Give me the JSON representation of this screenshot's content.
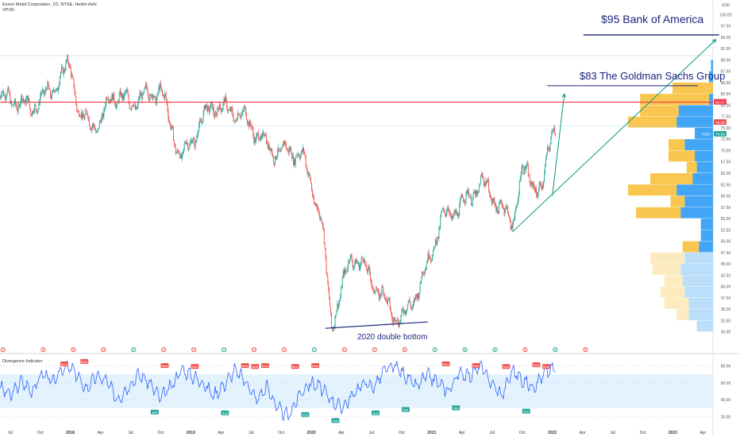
{
  "header": {
    "symbol": "Exxon Mobil Corporation, 1D, NYSE, Heikin Ashi",
    "indicator": "VPVR"
  },
  "colors": {
    "bull": "#26a69a",
    "bear": "#ef5350",
    "red_line": "#f23645",
    "annotation": "#1a237e",
    "trend": "#089981",
    "vp_up": "#42a5f5",
    "vp_down": "#f9c74f",
    "vp_up_light": "#bbdefb",
    "vp_down_light": "#fdebc0",
    "rsi": "#2962ff",
    "band": "#e3f2fd"
  },
  "annotations": {
    "boa": "$95 Bank of America",
    "gs": "$83 The Goldman Sachs Group",
    "double_bottom": "2020 double bottom"
  },
  "price_badges": {
    "red": "80.67",
    "upper": "75.38",
    "ticker": "XOM",
    "lower": "74.96",
    "currency": "USD"
  },
  "oscillator": {
    "title": "Divergence Indicator",
    "bull_label": "Bull",
    "bear_label": "Bear",
    "levels": [
      80,
      60,
      40,
      20
    ],
    "band": [
      30,
      70
    ]
  },
  "chart_data": {
    "type": "line",
    "title": "Exxon Mobil Corporation, 1D, NYSE, Heikin Ashi",
    "ylabel": "USD",
    "ylim": [
      27.5,
      102.5
    ],
    "y_ticks": [
      30,
      32.5,
      35,
      37.5,
      40,
      42.5,
      45,
      47.5,
      50,
      52.5,
      55,
      57.5,
      60,
      62.5,
      65,
      67.5,
      70,
      72.5,
      75,
      77.5,
      80,
      82.5,
      85,
      87.5,
      90,
      92.5,
      95,
      97.5,
      100
    ],
    "x_ticks": [
      "Jul",
      "Oct",
      "2018",
      "Apr",
      "Jul",
      "Oct",
      "2019",
      "Apr",
      "Jul",
      "Oct",
      "2020",
      "Apr",
      "Jul",
      "Oct",
      "2021",
      "Apr",
      "Jul",
      "Oct",
      "2022",
      "Apr",
      "Jul",
      "Oct",
      "2023",
      "Apr"
    ],
    "price": {
      "dates": [
        "2017-07",
        "2017-09",
        "2017-11",
        "2018-01",
        "2018-02",
        "2018-04",
        "2018-05",
        "2018-07",
        "2018-10",
        "2018-12",
        "2019-03",
        "2019-06",
        "2019-09",
        "2019-12",
        "2020-02",
        "2020-03",
        "2020-05",
        "2020-06",
        "2020-09",
        "2020-10",
        "2020-12",
        "2021-02",
        "2021-04",
        "2021-06",
        "2021-09",
        "2021-10",
        "2021-12",
        "2022-01"
      ],
      "values": [
        81.5,
        79.5,
        83,
        89,
        77,
        75.5,
        82.5,
        80.5,
        83.5,
        68,
        80,
        78,
        70,
        69.5,
        55,
        31.5,
        47,
        45,
        34.5,
        32.5,
        41,
        55,
        58,
        63,
        54,
        65.5,
        61,
        75.5
      ]
    },
    "horizontal_levels": [
      80.67,
      75.38
    ],
    "oscillator": {
      "name": "Divergence Indicator",
      "ylim": [
        10,
        90
      ],
      "values": [
        55,
        45,
        62,
        50,
        72,
        60,
        80,
        74,
        52,
        68,
        62,
        40,
        55,
        70,
        60,
        42,
        55,
        76,
        68,
        60,
        45,
        58,
        75,
        62,
        40,
        55,
        30,
        20,
        45,
        60,
        55,
        40,
        30,
        45,
        60,
        55,
        75,
        80,
        68,
        55,
        70,
        60,
        50,
        72,
        68,
        80,
        60,
        45,
        75,
        62,
        55,
        72,
        78
      ]
    },
    "volume_profile": {
      "price_levels": [
        31.25,
        33.75,
        36.25,
        38.75,
        41.25,
        43.75,
        46.25,
        48.75,
        51.25,
        53.75,
        56.25,
        58.75,
        61.25,
        63.75,
        66.25,
        68.75,
        71.25,
        73.75,
        76.25,
        78.75,
        81.25,
        83.75,
        86.25,
        88.75
      ],
      "up_volume": [
        8,
        12,
        12,
        14,
        15,
        16,
        14,
        7,
        6,
        6,
        16,
        14,
        18,
        10,
        8,
        9,
        14,
        9,
        18,
        17,
        2,
        0,
        2,
        1
      ],
      "down_volume": [
        0,
        6,
        12,
        12,
        9,
        14,
        17,
        8,
        0,
        0,
        22,
        7,
        24,
        21,
        5,
        13,
        8,
        0,
        24,
        19,
        34,
        20,
        0,
        0
      ]
    }
  }
}
